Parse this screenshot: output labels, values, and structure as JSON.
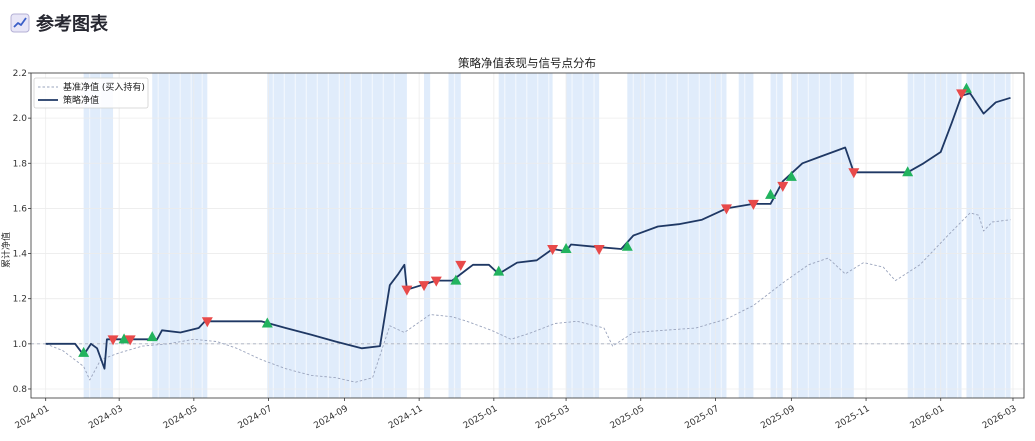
{
  "section": {
    "title": "参考图表",
    "icon": "chart-increasing-icon"
  },
  "chart_data": {
    "type": "line",
    "title": "策略净值表现与信号点分布",
    "xlabel": "",
    "ylabel": "累计净值",
    "xlim": [
      "2023-12-20",
      "2026-03-10"
    ],
    "ylim": [
      0.76,
      2.2
    ],
    "yticks": [
      0.8,
      1.0,
      1.2,
      1.4,
      1.6,
      1.8,
      2.0,
      2.2
    ],
    "xticks": [
      "2024-01",
      "2024-03",
      "2024-05",
      "2024-07",
      "2024-09",
      "2024-11",
      "2025-01",
      "2025-03",
      "2025-05",
      "2025-07",
      "2025-09",
      "2025-11",
      "2026-01",
      "2026-03"
    ],
    "reference_line": 1.0,
    "grid": true,
    "legend_position": "top-left",
    "colors": {
      "benchmark": "#9aa4bd",
      "strategy": "#1f3864",
      "buy": "#22b35e",
      "sell": "#e84a4a",
      "holding": "#d6e6fa"
    },
    "series": [
      {
        "name": "基准净值 (买入持有)",
        "style": "dashed",
        "points": [
          [
            "2024-01-01",
            1.0
          ],
          [
            "2024-01-15",
            0.97
          ],
          [
            "2024-02-01",
            0.9
          ],
          [
            "2024-02-06",
            0.84
          ],
          [
            "2024-02-15",
            0.93
          ],
          [
            "2024-03-01",
            0.96
          ],
          [
            "2024-03-20",
            0.99
          ],
          [
            "2024-04-10",
            1.0
          ],
          [
            "2024-05-01",
            1.02
          ],
          [
            "2024-05-20",
            1.01
          ],
          [
            "2024-06-05",
            0.98
          ],
          [
            "2024-06-25",
            0.93
          ],
          [
            "2024-07-15",
            0.89
          ],
          [
            "2024-08-05",
            0.86
          ],
          [
            "2024-08-25",
            0.85
          ],
          [
            "2024-09-10",
            0.83
          ],
          [
            "2024-09-24",
            0.85
          ],
          [
            "2024-10-08",
            1.08
          ],
          [
            "2024-10-20",
            1.05
          ],
          [
            "2024-11-10",
            1.13
          ],
          [
            "2024-11-28",
            1.12
          ],
          [
            "2024-12-10",
            1.1
          ],
          [
            "2024-12-30",
            1.06
          ],
          [
            "2025-01-15",
            1.02
          ],
          [
            "2025-02-01",
            1.05
          ],
          [
            "2025-02-20",
            1.09
          ],
          [
            "2025-03-10",
            1.1
          ],
          [
            "2025-04-01",
            1.07
          ],
          [
            "2025-04-08",
            0.99
          ],
          [
            "2025-04-25",
            1.05
          ],
          [
            "2025-05-20",
            1.06
          ],
          [
            "2025-06-15",
            1.07
          ],
          [
            "2025-07-10",
            1.11
          ],
          [
            "2025-08-01",
            1.17
          ],
          [
            "2025-08-25",
            1.27
          ],
          [
            "2025-09-15",
            1.35
          ],
          [
            "2025-10-01",
            1.38
          ],
          [
            "2025-10-15",
            1.31
          ],
          [
            "2025-10-30",
            1.36
          ],
          [
            "2025-11-15",
            1.34
          ],
          [
            "2025-11-25",
            1.28
          ],
          [
            "2025-12-15",
            1.35
          ],
          [
            "2026-01-05",
            1.47
          ],
          [
            "2026-01-25",
            1.58
          ],
          [
            "2026-02-01",
            1.57
          ],
          [
            "2026-02-05",
            1.5
          ],
          [
            "2026-02-12",
            1.54
          ],
          [
            "2026-02-27",
            1.55
          ]
        ]
      },
      {
        "name": "策略净值",
        "style": "solid",
        "points": [
          [
            "2024-01-01",
            1.0
          ],
          [
            "2024-01-25",
            1.0
          ],
          [
            "2024-02-01",
            0.95
          ],
          [
            "2024-02-07",
            1.0
          ],
          [
            "2024-02-12",
            0.98
          ],
          [
            "2024-02-18",
            0.89
          ],
          [
            "2024-02-20",
            1.02
          ],
          [
            "2024-03-01",
            1.02
          ],
          [
            "2024-04-01",
            1.02
          ],
          [
            "2024-04-05",
            1.06
          ],
          [
            "2024-04-20",
            1.05
          ],
          [
            "2024-05-05",
            1.07
          ],
          [
            "2024-05-10",
            1.1
          ],
          [
            "2024-06-25",
            1.1
          ],
          [
            "2024-07-15",
            1.07
          ],
          [
            "2024-08-05",
            1.04
          ],
          [
            "2024-08-25",
            1.01
          ],
          [
            "2024-09-15",
            0.98
          ],
          [
            "2024-09-30",
            0.99
          ],
          [
            "2024-10-08",
            1.26
          ],
          [
            "2024-10-15",
            1.31
          ],
          [
            "2024-10-20",
            1.35
          ],
          [
            "2024-10-22",
            1.24
          ],
          [
            "2024-11-15",
            1.28
          ],
          [
            "2024-11-28",
            1.28
          ],
          [
            "2024-12-10",
            1.33
          ],
          [
            "2024-12-15",
            1.35
          ],
          [
            "2024-12-28",
            1.35
          ],
          [
            "2025-01-05",
            1.31
          ],
          [
            "2025-01-20",
            1.36
          ],
          [
            "2025-02-05",
            1.37
          ],
          [
            "2025-02-18",
            1.42
          ],
          [
            "2025-03-01",
            1.41
          ],
          [
            "2025-03-05",
            1.44
          ],
          [
            "2025-03-25",
            1.43
          ],
          [
            "2025-04-15",
            1.42
          ],
          [
            "2025-04-25",
            1.48
          ],
          [
            "2025-05-15",
            1.52
          ],
          [
            "2025-06-01",
            1.53
          ],
          [
            "2025-06-20",
            1.55
          ],
          [
            "2025-07-10",
            1.6
          ],
          [
            "2025-08-01",
            1.62
          ],
          [
            "2025-08-15",
            1.62
          ],
          [
            "2025-08-25",
            1.72
          ],
          [
            "2025-09-10",
            1.8
          ],
          [
            "2025-09-25",
            1.83
          ],
          [
            "2025-10-05",
            1.85
          ],
          [
            "2025-10-15",
            1.87
          ],
          [
            "2025-10-22",
            1.76
          ],
          [
            "2025-12-05",
            1.76
          ],
          [
            "2025-12-18",
            1.8
          ],
          [
            "2026-01-01",
            1.85
          ],
          [
            "2026-01-10",
            1.98
          ],
          [
            "2026-01-18",
            2.1
          ],
          [
            "2026-01-25",
            2.11
          ],
          [
            "2026-02-05",
            2.02
          ],
          [
            "2026-02-15",
            2.07
          ],
          [
            "2026-02-27",
            2.09
          ]
        ]
      }
    ],
    "buy_signals": [
      [
        "2024-02-01",
        0.96
      ],
      [
        "2024-03-05",
        1.02
      ],
      [
        "2024-03-28",
        1.03
      ],
      [
        "2024-06-30",
        1.09
      ],
      [
        "2024-12-01",
        1.28
      ],
      [
        "2025-01-05",
        1.32
      ],
      [
        "2025-03-01",
        1.42
      ],
      [
        "2025-04-20",
        1.43
      ],
      [
        "2025-08-15",
        1.66
      ],
      [
        "2025-09-01",
        1.74
      ],
      [
        "2025-12-05",
        1.76
      ],
      [
        "2026-01-22",
        2.13
      ]
    ],
    "sell_signals": [
      [
        "2024-02-25",
        1.02
      ],
      [
        "2024-03-10",
        1.02
      ],
      [
        "2024-05-12",
        1.1
      ],
      [
        "2024-10-22",
        1.24
      ],
      [
        "2024-11-05",
        1.26
      ],
      [
        "2024-11-15",
        1.28
      ],
      [
        "2024-12-05",
        1.35
      ],
      [
        "2025-02-18",
        1.42
      ],
      [
        "2025-03-28",
        1.42
      ],
      [
        "2025-07-10",
        1.6
      ],
      [
        "2025-08-01",
        1.62
      ],
      [
        "2025-08-25",
        1.7
      ],
      [
        "2025-10-22",
        1.76
      ],
      [
        "2026-01-18",
        2.11
      ]
    ],
    "holding_periods": [
      [
        "2024-02-01",
        "2024-02-25"
      ],
      [
        "2024-03-28",
        "2024-05-12"
      ],
      [
        "2024-06-30",
        "2024-10-22"
      ],
      [
        "2024-11-05",
        "2024-11-10"
      ],
      [
        "2024-11-25",
        "2024-12-05"
      ],
      [
        "2025-01-05",
        "2025-02-18"
      ],
      [
        "2025-03-01",
        "2025-03-28"
      ],
      [
        "2025-04-20",
        "2025-07-10"
      ],
      [
        "2025-07-20",
        "2025-08-01"
      ],
      [
        "2025-08-15",
        "2025-08-25"
      ],
      [
        "2025-09-01",
        "2025-10-22"
      ],
      [
        "2025-12-05",
        "2026-01-18"
      ],
      [
        "2026-01-22",
        "2026-02-27"
      ]
    ]
  }
}
